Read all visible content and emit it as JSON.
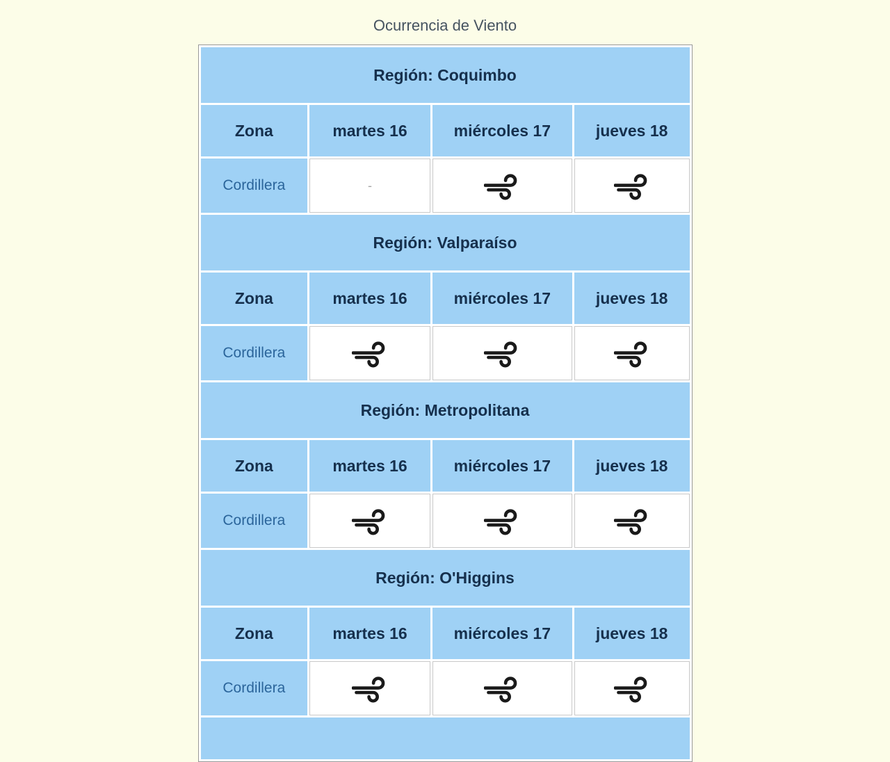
{
  "page": {
    "title": "Ocurrencia de Viento"
  },
  "colors": {
    "page_background": "#FCFDE8",
    "cell_blue": "#9FD1F5",
    "header_text": "#16304D",
    "zone_link_text": "#2B659B",
    "title_text": "#465360",
    "table_outer_border": "#999999",
    "data_cell_border": "#C9C9C9",
    "wind_icon": "#1A1A1A",
    "dash_text": "#A6A6A6"
  },
  "table": {
    "column_headers": [
      "Zona",
      "martes 16",
      "miércoles 17",
      "jueves 18"
    ],
    "dash_symbol": "-",
    "wind_icon_name": "wind-icon",
    "regions": [
      {
        "name": "Región: Coquimbo",
        "zone": "Cordillera",
        "values": [
          "dash",
          "wind",
          "wind"
        ]
      },
      {
        "name": "Región: Valparaíso",
        "zone": "Cordillera",
        "values": [
          "wind",
          "wind",
          "wind"
        ]
      },
      {
        "name": "Región: Metropolitana",
        "zone": "Cordillera",
        "values": [
          "wind",
          "wind",
          "wind"
        ]
      },
      {
        "name": "Región: O'Higgins",
        "zone": "Cordillera",
        "values": [
          "wind",
          "wind",
          "wind"
        ]
      }
    ],
    "next_region_header_partially_visible": true
  }
}
